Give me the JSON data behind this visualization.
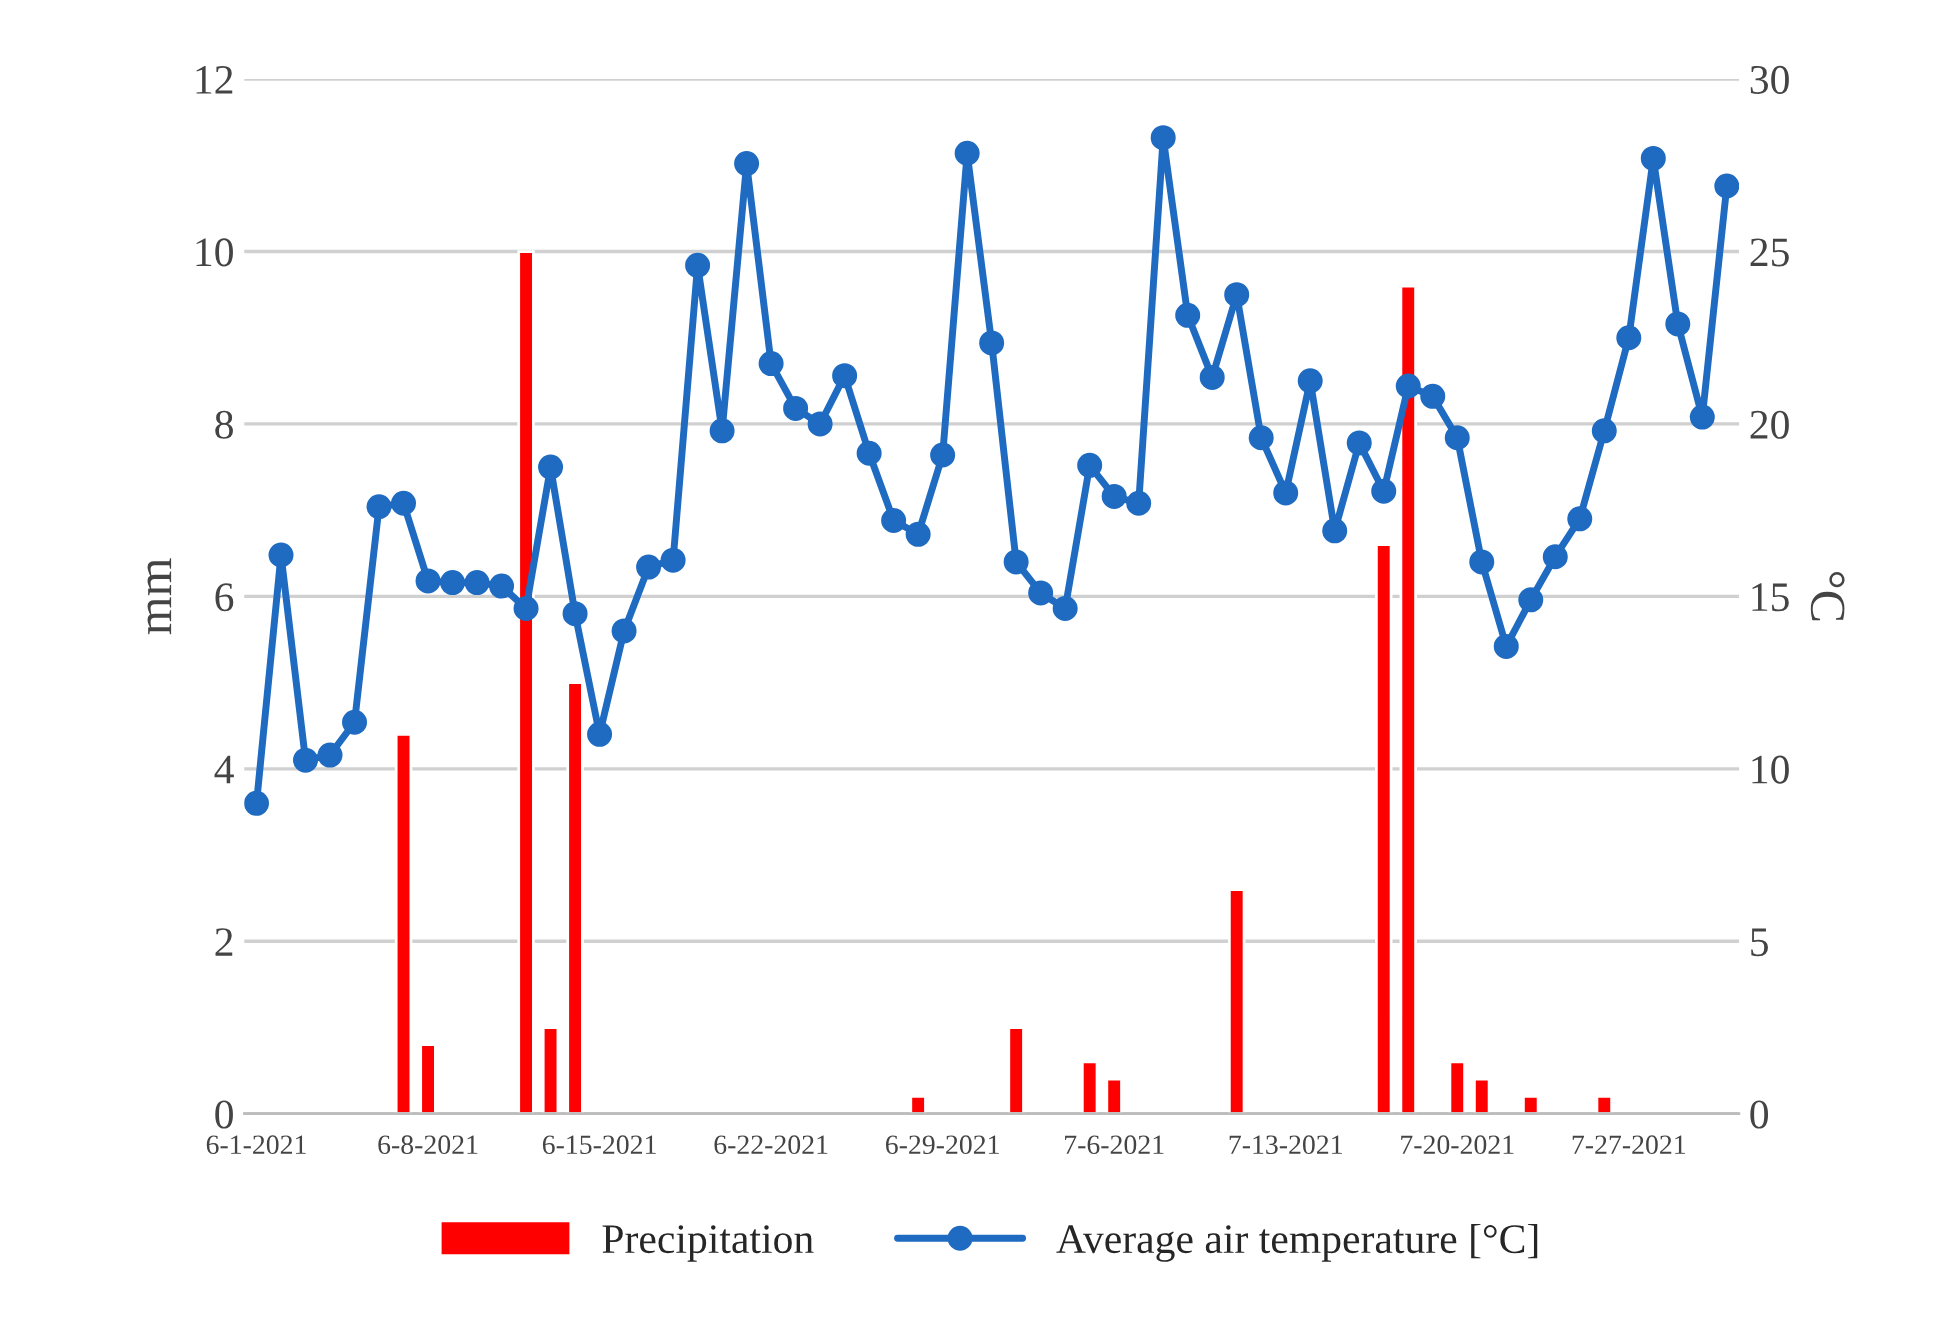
{
  "chart_data": {
    "type": "bar",
    "ylabel": "mm",
    "y2label": "°C",
    "categories": [
      "6-1-2021",
      null,
      null,
      null,
      null,
      null,
      null,
      "6-8-2021",
      null,
      null,
      null,
      null,
      null,
      null,
      "6-15-2021",
      null,
      null,
      null,
      null,
      null,
      null,
      "6-22-2021",
      null,
      null,
      null,
      null,
      null,
      null,
      "6-29-2021",
      null,
      null,
      null,
      null,
      null,
      null,
      "7-6-2021",
      null,
      null,
      null,
      null,
      null,
      null,
      "7-13-2021",
      null,
      null,
      null,
      null,
      null,
      null,
      "7-20-2021",
      null,
      null,
      null,
      null,
      null,
      null,
      "7-27-2021",
      null,
      null,
      null,
      null
    ],
    "series": [
      {
        "name": "Precipitation",
        "color": "#ff0000",
        "values": [
          null,
          null,
          null,
          null,
          null,
          null,
          4.4,
          0.8,
          null,
          null,
          null,
          10.0,
          1.0,
          5.0,
          null,
          null,
          null,
          null,
          null,
          null,
          null,
          null,
          null,
          null,
          null,
          null,
          null,
          0.2,
          null,
          null,
          null,
          1.0,
          null,
          null,
          0.6,
          0.4,
          null,
          null,
          null,
          null,
          2.6,
          null,
          null,
          null,
          null,
          null,
          6.6,
          9.6,
          null,
          0.6,
          0.4,
          null,
          0.2,
          null,
          null,
          0.2,
          null,
          null,
          null,
          null,
          null
        ]
      },
      {
        "name": "Average air temperature [°C]",
        "type": "line",
        "axis": "y2",
        "color": "#1f6bc1",
        "marker": "circle",
        "line_style": "solid",
        "values": [
          9.0,
          16.2,
          10.25,
          10.4,
          11.35,
          17.6,
          17.7,
          15.45,
          15.4,
          15.4,
          15.3,
          14.65,
          18.75,
          14.5,
          11.0,
          14.0,
          15.85,
          16.05,
          24.6,
          19.8,
          27.55,
          21.75,
          20.45,
          20.0,
          21.4,
          19.15,
          17.2,
          16.8,
          19.1,
          27.85,
          22.35,
          16.0,
          15.1,
          14.65,
          18.8,
          17.9,
          17.7,
          28.3,
          23.15,
          21.35,
          23.75,
          19.6,
          18.0,
          21.25,
          16.9,
          19.45,
          18.05,
          21.1,
          20.8,
          19.6,
          16.0,
          13.55,
          14.9,
          16.15,
          17.25,
          19.8,
          22.5,
          27.7,
          22.9,
          20.2,
          26.9
        ]
      }
    ],
    "ylim": [
      0,
      12
    ],
    "yticks": [
      0,
      2,
      4,
      6,
      8,
      10,
      12
    ],
    "y2lim": [
      0,
      30
    ],
    "y2ticks": [
      0,
      5,
      10,
      15,
      20,
      25,
      30
    ],
    "grid": "y",
    "legend": "bottom"
  }
}
